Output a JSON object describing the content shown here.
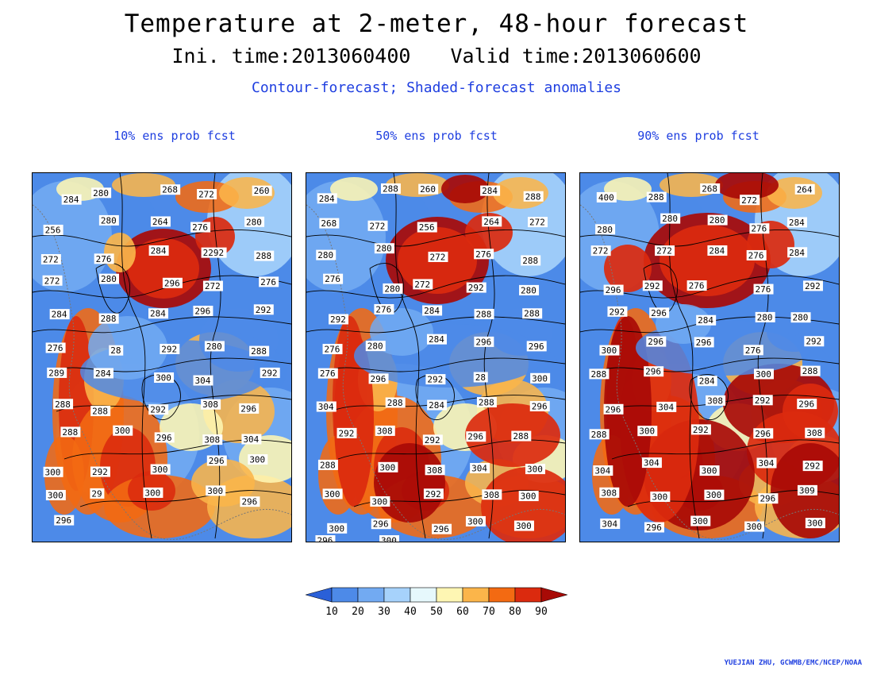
{
  "header": {
    "title": "Temperature at 2-meter, 48-hour forecast",
    "ini_time": "Ini. time:2013060400",
    "valid_time": "Valid time:2013060600",
    "subtitle": "Contour-forecast; Shaded-forecast anomalies"
  },
  "panels": [
    {
      "title": "10% ens prob fcst",
      "labels": [
        "284",
        "280",
        "268",
        "272",
        "260",
        "256",
        "280",
        "264",
        "276",
        "280",
        "272",
        "276",
        "284",
        "2292",
        "288",
        "272",
        "280",
        "296",
        "272",
        "276",
        "284",
        "288",
        "284",
        "296",
        "292",
        "276",
        "28",
        "292",
        "280",
        "288",
        "289",
        "284",
        "300",
        "304",
        "292",
        "288",
        "288",
        "292",
        "308",
        "296",
        "288",
        "300",
        "296",
        "308",
        "304",
        "300",
        "292",
        "300",
        "296",
        "300",
        "300",
        "29",
        "300",
        "300",
        "296",
        "296"
      ]
    },
    {
      "title": "50% ens prob fcst",
      "labels": [
        "284",
        "288",
        "260",
        "284",
        "288",
        "268",
        "272",
        "256",
        "264",
        "272",
        "280",
        "280",
        "272",
        "276",
        "288",
        "276",
        "280",
        "272",
        "292",
        "280",
        "292",
        "276",
        "284",
        "288",
        "288",
        "276",
        "280",
        "284",
        "296",
        "296",
        "276",
        "296",
        "292",
        "28",
        "300",
        "304",
        "288",
        "284",
        "288",
        "296",
        "292",
        "308",
        "292",
        "296",
        "288",
        "288",
        "300",
        "308",
        "304",
        "300",
        "300",
        "300",
        "292",
        "308",
        "300",
        "300",
        "296",
        "296",
        "300",
        "300",
        "296",
        "300"
      ]
    },
    {
      "title": "90% ens prob fcst",
      "labels": [
        "400",
        "288",
        "268",
        "272",
        "264",
        "280",
        "280",
        "280",
        "276",
        "284",
        "272",
        "272",
        "284",
        "276",
        "284",
        "296",
        "292",
        "276",
        "276",
        "292",
        "292",
        "296",
        "284",
        "280",
        "280",
        "300",
        "296",
        "296",
        "276",
        "292",
        "288",
        "296",
        "284",
        "300",
        "288",
        "296",
        "304",
        "308",
        "292",
        "296",
        "288",
        "300",
        "292",
        "296",
        "308",
        "304",
        "304",
        "300",
        "304",
        "292",
        "308",
        "300",
        "300",
        "296",
        "309",
        "304",
        "296",
        "300",
        "300",
        "300"
      ]
    }
  ],
  "colorbar": {
    "tick_labels": [
      "10",
      "20",
      "30",
      "40",
      "50",
      "60",
      "70",
      "80",
      "90"
    ],
    "colors": [
      "#2a60d8",
      "#4d8ae8",
      "#72aaf2",
      "#a6d2fb",
      "#e6f8fc",
      "#fef6b3",
      "#fbb54a",
      "#f36a12",
      "#db2a0e",
      "#a80a06"
    ]
  },
  "credit": "YUEJIAN ZHU, GCWMB/EMC/NCEP/NOAA"
}
